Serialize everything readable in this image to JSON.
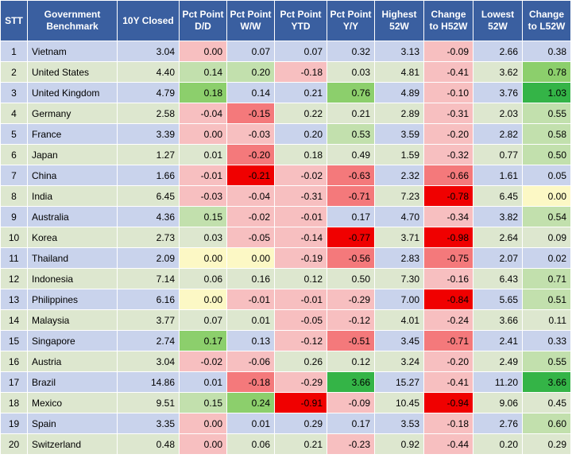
{
  "table": {
    "headers": [
      "STT",
      "Government Benchmark",
      "10Y Closed",
      "Pct Point D/D",
      "Pct Point W/W",
      "Pct Point YTD",
      "Pct Point Y/Y",
      "Highest 52W",
      "Change to H52W",
      "Lowest 52W",
      "Change to L52W"
    ],
    "rows": [
      {
        "stt": "1",
        "name": "Vietnam",
        "c": [
          "3.04",
          "0.00",
          "0.07",
          "0.07",
          "0.32",
          "3.13",
          "-0.09",
          "2.66",
          "0.38"
        ],
        "s": [
          "",
          "neg-1",
          "",
          "",
          "",
          "",
          "neg-1",
          "",
          ""
        ]
      },
      {
        "stt": "2",
        "name": "United States",
        "c": [
          "4.40",
          "0.14",
          "0.20",
          "-0.18",
          "0.03",
          "4.81",
          "-0.41",
          "3.62",
          "0.78"
        ],
        "s": [
          "",
          "pos-1",
          "pos-1",
          "neg-1",
          "",
          "",
          "neg-1",
          "",
          "pos-2"
        ]
      },
      {
        "stt": "3",
        "name": "United Kingdom",
        "c": [
          "4.79",
          "0.18",
          "0.14",
          "0.21",
          "0.76",
          "4.89",
          "-0.10",
          "3.76",
          "1.03"
        ],
        "s": [
          "",
          "pos-2",
          "",
          "",
          "pos-2",
          "",
          "neg-1",
          "",
          "pos-3"
        ]
      },
      {
        "stt": "4",
        "name": "Germany",
        "c": [
          "2.58",
          "-0.04",
          "-0.15",
          "0.22",
          "0.21",
          "2.89",
          "-0.31",
          "2.03",
          "0.55"
        ],
        "s": [
          "",
          "neg-1",
          "neg-2",
          "",
          "",
          "",
          "neg-1",
          "",
          "pos-1"
        ]
      },
      {
        "stt": "5",
        "name": "France",
        "c": [
          "3.39",
          "0.00",
          "-0.03",
          "0.20",
          "0.53",
          "3.59",
          "-0.20",
          "2.82",
          "0.58"
        ],
        "s": [
          "",
          "neg-1",
          "neg-1",
          "",
          "pos-1",
          "",
          "neg-1",
          "",
          "pos-1"
        ]
      },
      {
        "stt": "6",
        "name": "Japan",
        "c": [
          "1.27",
          "0.01",
          "-0.20",
          "0.18",
          "0.49",
          "1.59",
          "-0.32",
          "0.77",
          "0.50"
        ],
        "s": [
          "",
          "",
          "neg-2",
          "",
          "",
          "",
          "neg-1",
          "",
          "pos-1"
        ]
      },
      {
        "stt": "7",
        "name": "China",
        "c": [
          "1.66",
          "-0.01",
          "-0.21",
          "-0.02",
          "-0.63",
          "2.32",
          "-0.66",
          "1.61",
          "0.05"
        ],
        "s": [
          "",
          "neg-1",
          "neg-3",
          "neg-1",
          "neg-2",
          "",
          "neg-2",
          "",
          ""
        ]
      },
      {
        "stt": "8",
        "name": "India",
        "c": [
          "6.45",
          "-0.03",
          "-0.04",
          "-0.31",
          "-0.71",
          "7.23",
          "-0.78",
          "6.45",
          "0.00"
        ],
        "s": [
          "",
          "neg-1",
          "neg-1",
          "neg-1",
          "neg-2",
          "",
          "neg-3",
          "",
          "zero"
        ]
      },
      {
        "stt": "9",
        "name": "Australia",
        "c": [
          "4.36",
          "0.15",
          "-0.02",
          "-0.01",
          "0.17",
          "4.70",
          "-0.34",
          "3.82",
          "0.54"
        ],
        "s": [
          "",
          "pos-1",
          "neg-1",
          "neg-1",
          "",
          "",
          "neg-1",
          "",
          "pos-1"
        ]
      },
      {
        "stt": "10",
        "name": "Korea",
        "c": [
          "2.73",
          "0.03",
          "-0.05",
          "-0.14",
          "-0.77",
          "3.71",
          "-0.98",
          "2.64",
          "0.09"
        ],
        "s": [
          "",
          "",
          "neg-1",
          "neg-1",
          "neg-3",
          "",
          "neg-3",
          "",
          ""
        ]
      },
      {
        "stt": "11",
        "name": "Thailand",
        "c": [
          "2.09",
          "0.00",
          "0.00",
          "-0.19",
          "-0.56",
          "2.83",
          "-0.75",
          "2.07",
          "0.02"
        ],
        "s": [
          "",
          "zero",
          "zero",
          "neg-1",
          "neg-2",
          "",
          "neg-2",
          "",
          ""
        ]
      },
      {
        "stt": "12",
        "name": "Indonesia",
        "c": [
          "7.14",
          "0.06",
          "0.16",
          "0.12",
          "0.50",
          "7.30",
          "-0.16",
          "6.43",
          "0.71"
        ],
        "s": [
          "",
          "",
          "",
          "",
          "",
          "",
          "neg-1",
          "",
          "pos-1"
        ]
      },
      {
        "stt": "13",
        "name": "Philippines",
        "c": [
          "6.16",
          "0.00",
          "-0.01",
          "-0.01",
          "-0.29",
          "7.00",
          "-0.84",
          "5.65",
          "0.51"
        ],
        "s": [
          "",
          "zero",
          "neg-1",
          "neg-1",
          "neg-1",
          "",
          "neg-3",
          "",
          "pos-1"
        ]
      },
      {
        "stt": "14",
        "name": "Malaysia",
        "c": [
          "3.77",
          "0.07",
          "0.01",
          "-0.05",
          "-0.12",
          "4.01",
          "-0.24",
          "3.66",
          "0.11"
        ],
        "s": [
          "",
          "",
          "",
          "neg-1",
          "neg-1",
          "",
          "neg-1",
          "",
          ""
        ]
      },
      {
        "stt": "15",
        "name": "Singapore",
        "c": [
          "2.74",
          "0.17",
          "0.13",
          "-0.12",
          "-0.51",
          "3.45",
          "-0.71",
          "2.41",
          "0.33"
        ],
        "s": [
          "",
          "pos-2",
          "",
          "neg-1",
          "neg-2",
          "",
          "neg-2",
          "",
          ""
        ]
      },
      {
        "stt": "16",
        "name": "Austria",
        "c": [
          "3.04",
          "-0.02",
          "-0.06",
          "0.26",
          "0.12",
          "3.24",
          "-0.20",
          "2.49",
          "0.55"
        ],
        "s": [
          "",
          "neg-1",
          "neg-1",
          "",
          "",
          "",
          "neg-1",
          "",
          "pos-1"
        ]
      },
      {
        "stt": "17",
        "name": "Brazil",
        "c": [
          "14.86",
          "0.01",
          "-0.18",
          "-0.29",
          "3.66",
          "15.27",
          "-0.41",
          "11.20",
          "3.66"
        ],
        "s": [
          "",
          "",
          "neg-2",
          "neg-1",
          "pos-3",
          "",
          "neg-1",
          "",
          "pos-3"
        ]
      },
      {
        "stt": "18",
        "name": "Mexico",
        "c": [
          "9.51",
          "0.15",
          "0.24",
          "-0.91",
          "-0.09",
          "10.45",
          "-0.94",
          "9.06",
          "0.45"
        ],
        "s": [
          "",
          "pos-1",
          "pos-2",
          "neg-3",
          "neg-1",
          "",
          "neg-3",
          "",
          ""
        ]
      },
      {
        "stt": "19",
        "name": "Spain",
        "c": [
          "3.35",
          "0.00",
          "0.01",
          "0.29",
          "0.17",
          "3.53",
          "-0.18",
          "2.76",
          "0.60"
        ],
        "s": [
          "",
          "neg-1",
          "",
          "",
          "",
          "",
          "neg-1",
          "",
          "pos-1"
        ]
      },
      {
        "stt": "20",
        "name": "Switzerland",
        "c": [
          "0.48",
          "0.00",
          "0.06",
          "0.21",
          "-0.23",
          "0.92",
          "-0.44",
          "0.20",
          "0.29"
        ],
        "s": [
          "",
          "neg-1",
          "",
          "",
          "neg-1",
          "",
          "neg-1",
          "",
          ""
        ]
      }
    ]
  },
  "colors": {
    "header_bg": "#3a5fa0",
    "row_odd": "#c9d3ec",
    "row_even": "#dde7cf",
    "neg_light": "#f7bfc0",
    "neg_mid": "#f4797b",
    "neg_strong": "#f00000",
    "pos_light": "#c2e0ad",
    "pos_mid": "#8ccf6c",
    "pos_strong": "#34b447",
    "zero": "#fcf8c5"
  }
}
